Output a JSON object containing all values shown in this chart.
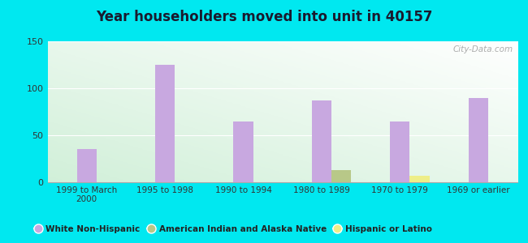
{
  "title": "Year householders moved into unit in 40157",
  "categories": [
    "1999 to March\n2000",
    "1995 to 1998",
    "1990 to 1994",
    "1980 to 1989",
    "1970 to 1979",
    "1969 or earlier"
  ],
  "white_non_hispanic": [
    35,
    125,
    65,
    87,
    65,
    90
  ],
  "american_indian": [
    0,
    0,
    0,
    13,
    0,
    0
  ],
  "hispanic": [
    0,
    0,
    0,
    0,
    7,
    0
  ],
  "white_color": "#c8a8e0",
  "american_indian_color": "#b8c888",
  "hispanic_color": "#eeee88",
  "background_outer": "#00e8f0",
  "ylim": [
    0,
    150
  ],
  "yticks": [
    0,
    50,
    100,
    150
  ],
  "bar_width": 0.25,
  "watermark": "City-Data.com"
}
